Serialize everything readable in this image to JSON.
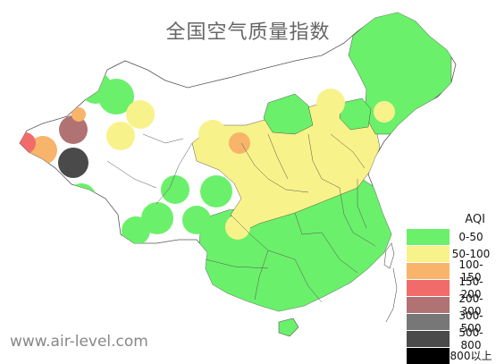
{
  "title": "全国空气质量指数",
  "watermark": "www.air-level.com",
  "legend": {
    "title": "AQI",
    "items": [
      {
        "label": "0-50",
        "color": "#6bf06b"
      },
      {
        "label": "50-100",
        "color": "#f8f28a"
      },
      {
        "label": "100-150",
        "color": "#f8b46a"
      },
      {
        "label": "150-200",
        "color": "#f26b6b"
      },
      {
        "label": "200-300",
        "color": "#b07272"
      },
      {
        "label": "300-500",
        "color": "#777777"
      },
      {
        "label": "500-800",
        "color": "#4a4a4a"
      },
      {
        "label": "800以上",
        "color": "#000000"
      }
    ]
  }
}
